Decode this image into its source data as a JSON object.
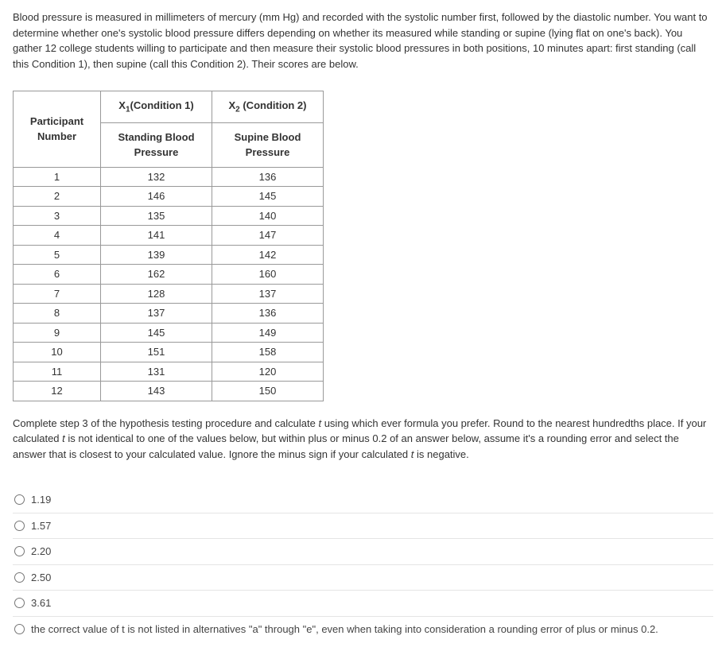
{
  "question_text": "Blood pressure is measured in millimeters of mercury (mm Hg) and recorded with the systolic number first, followed by the diastolic number.  You want to determine whether one's systolic blood pressure differs depending on whether its measured while standing or supine (lying flat on one's back).  You gather 12 college students willing to participate and then measure their systolic blood pressures in both positions, 10 minutes apart:  first standing (call this Condition 1), then supine (call this Condition 2). Their scores are below.",
  "table": {
    "header_participant": "Participant Number",
    "header_c1_var": "X",
    "header_c1_sub": "1",
    "header_c1_label": "(Condition 1)",
    "header_c1_sub2": "Standing Blood Pressure",
    "header_c2_var": "X",
    "header_c2_sub": "2",
    "header_c2_label": " (Condition 2)",
    "header_c2_sub2": "Supine Blood Pressure",
    "rows": [
      {
        "n": "1",
        "c1": "132",
        "c2": "136"
      },
      {
        "n": "2",
        "c1": "146",
        "c2": "145"
      },
      {
        "n": "3",
        "c1": "135",
        "c2": "140"
      },
      {
        "n": "4",
        "c1": "141",
        "c2": "147"
      },
      {
        "n": "5",
        "c1": "139",
        "c2": "142"
      },
      {
        "n": "6",
        "c1": "162",
        "c2": "160"
      },
      {
        "n": "7",
        "c1": "128",
        "c2": "137"
      },
      {
        "n": "8",
        "c1": "137",
        "c2": "136"
      },
      {
        "n": "9",
        "c1": "145",
        "c2": "149"
      },
      {
        "n": "10",
        "c1": "151",
        "c2": "158"
      },
      {
        "n": "11",
        "c1": "131",
        "c2": "120"
      },
      {
        "n": "12",
        "c1": "143",
        "c2": "150"
      }
    ]
  },
  "instruction_p1": "Complete step 3 of the hypothesis testing procedure and calculate ",
  "instruction_t1": "t",
  "instruction_p2": " using which ever formula you prefer.  Round to the nearest hundredths place.  If your calculated ",
  "instruction_t2": "t",
  "instruction_p3": " is not identical to one of the values below, but within plus or minus 0.2 of an answer below, assume it's a rounding error and select the answer that is closest to your calculated value.  Ignore the minus sign if your calculated ",
  "instruction_t3": "t",
  "instruction_p4": " is negative.",
  "options": [
    "1.19",
    "1.57",
    "2.20",
    "2.50",
    "3.61",
    "the correct value of t is not listed in alternatives \"a\" through \"e\", even when taking into  consideration a rounding error of plus or minus 0.2."
  ]
}
